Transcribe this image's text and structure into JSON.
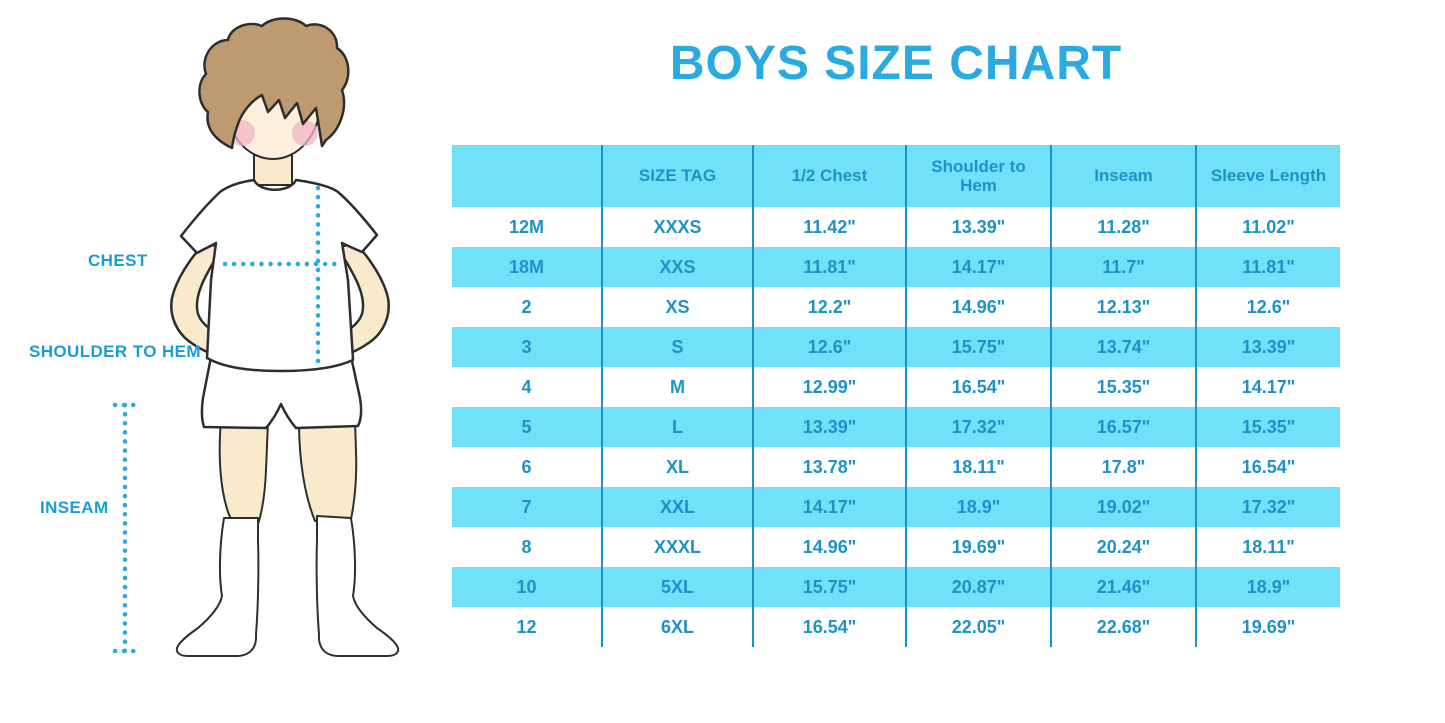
{
  "title": "BOYS SIZE CHART",
  "illustration": {
    "labels": {
      "chest": "CHEST",
      "shoulder_to_hem": "SHOULDER TO HEM",
      "inseam": "INSEAM"
    }
  },
  "colors": {
    "title_blue": "#29ABE2",
    "table_text_blue": "#1C93C8",
    "column_line_blue": "#1A93C8",
    "row_stripe_cyan": "#70E1F8",
    "measure_label_blue": "#1A9CD8",
    "dotted_line_blue": "#2BA9E0",
    "skin": "#FAEACC",
    "hair": "#BD9A70",
    "blush": "#F3B4C4"
  },
  "chart_data": {
    "type": "table",
    "title": "BOYS SIZE CHART",
    "columns": [
      "",
      "SIZE TAG",
      "1/2 Chest",
      "Shoulder to Hem",
      "Inseam",
      "Sleeve Length"
    ],
    "rows": [
      [
        "12M",
        "XXXS",
        "11.42\"",
        "13.39\"",
        "11.28\"",
        "11.02\""
      ],
      [
        "18M",
        "XXS",
        "11.81\"",
        "14.17\"",
        "11.7\"",
        "11.81\""
      ],
      [
        "2",
        "XS",
        "12.2\"",
        "14.96\"",
        "12.13\"",
        "12.6\""
      ],
      [
        "3",
        "S",
        "12.6\"",
        "15.75\"",
        "13.74\"",
        "13.39\""
      ],
      [
        "4",
        "M",
        "12.99\"",
        "16.54\"",
        "15.35\"",
        "14.17\""
      ],
      [
        "5",
        "L",
        "13.39\"",
        "17.32\"",
        "16.57\"",
        "15.35\""
      ],
      [
        "6",
        "XL",
        "13.78\"",
        "18.11\"",
        "17.8\"",
        "16.54\""
      ],
      [
        "7",
        "XXL",
        "14.17\"",
        "18.9\"",
        "19.02\"",
        "17.32\""
      ],
      [
        "8",
        "XXXL",
        "14.96\"",
        "19.69\"",
        "20.24\"",
        "18.11\""
      ],
      [
        "10",
        "5XL",
        "15.75\"",
        "20.87\"",
        "21.46\"",
        "18.9\""
      ],
      [
        "12",
        "6XL",
        "16.54\"",
        "22.05\"",
        "22.68\"",
        "19.69\""
      ]
    ],
    "layout": {
      "stripe_pattern": "header cyan, then rows alternate white/cyan starting white",
      "grid": "vertical column separators only, no outer border"
    }
  }
}
